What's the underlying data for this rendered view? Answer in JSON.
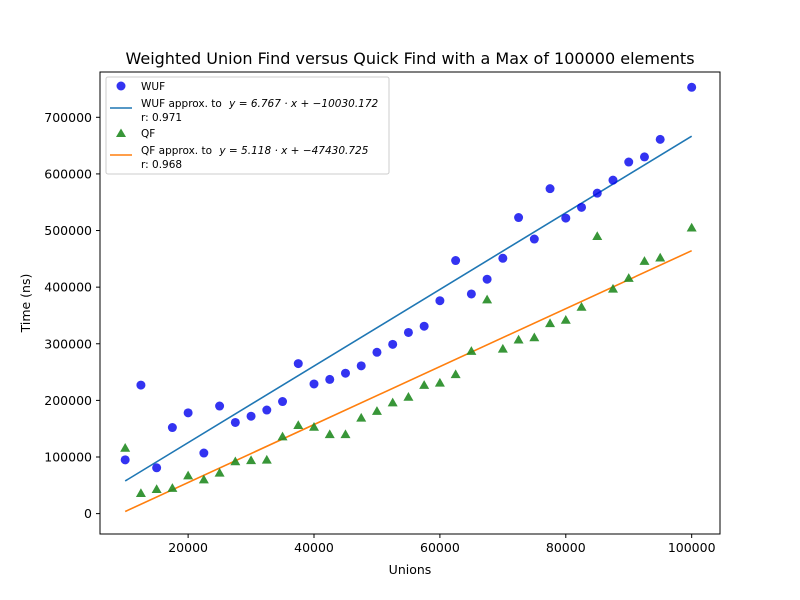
{
  "chart_data": {
    "type": "scatter",
    "title": "Weighted Union Find versus Quick Find with a Max of 100000 elements",
    "xlabel": "Unions",
    "ylabel": "Time (ns)",
    "xlim": [
      6000,
      104500
    ],
    "ylim": [
      -36000,
      780000
    ],
    "x_ticks": [
      20000,
      40000,
      60000,
      80000,
      100000
    ],
    "x_tick_labels": [
      "20000",
      "40000",
      "60000",
      "80000",
      "100000"
    ],
    "y_ticks": [
      0,
      100000,
      200000,
      300000,
      400000,
      500000,
      600000,
      700000
    ],
    "y_tick_labels": [
      "0",
      "100000",
      "200000",
      "300000",
      "400000",
      "500000",
      "600000",
      "700000"
    ],
    "grid": false,
    "legend_position": "top-left",
    "x": [
      10000,
      12500,
      15000,
      17500,
      20000,
      22500,
      25000,
      27500,
      30000,
      32500,
      35000,
      37500,
      40000,
      42500,
      45000,
      47500,
      50000,
      52500,
      55000,
      57500,
      60000,
      62500,
      65000,
      67500,
      70000,
      72500,
      75000,
      77500,
      80000,
      82500,
      85000,
      87500,
      90000,
      92500,
      95000,
      100000
    ],
    "series": [
      {
        "name": "WUF",
        "kind": "scatter",
        "marker": "circle",
        "color": "#0000ee",
        "values": [
          95000,
          227000,
          81000,
          152000,
          178000,
          107000,
          190000,
          161000,
          172000,
          183000,
          198000,
          265000,
          229000,
          237000,
          248000,
          261000,
          285000,
          299000,
          320000,
          331000,
          376000,
          447000,
          388000,
          414000,
          451000,
          523000,
          485000,
          574000,
          522000,
          541000,
          566000,
          589000,
          621000,
          630000,
          661000,
          753000
        ]
      },
      {
        "name": "QF",
        "kind": "scatter",
        "marker": "triangle",
        "color": "#228b22",
        "values": [
          116000,
          36000,
          43000,
          45000,
          67000,
          60000,
          72000,
          92000,
          94000,
          95000,
          136000,
          156000,
          153000,
          140000,
          140000,
          169000,
          181000,
          196000,
          206000,
          227000,
          231000,
          246000,
          287000,
          378000,
          291000,
          307000,
          311000,
          336000,
          342000,
          365000,
          490000,
          397000,
          416000,
          446000,
          452000,
          505000
        ]
      }
    ],
    "fits": [
      {
        "name": "WUF approx. to",
        "equation_text": "y = 6.767 · x + −10030.172",
        "r_text": "r: 0.971",
        "slope": 6.767,
        "intercept": -10030.172,
        "x_range": [
          10000,
          100000
        ],
        "color": "#1f77b4"
      },
      {
        "name": "QF approx. to",
        "equation_text": "y = 5.118 · x + −47430.725",
        "r_text": "r: 0.968",
        "slope": 5.118,
        "intercept": -47430.725,
        "x_range": [
          10000,
          100000
        ],
        "color": "#ff7f0e"
      }
    ]
  }
}
